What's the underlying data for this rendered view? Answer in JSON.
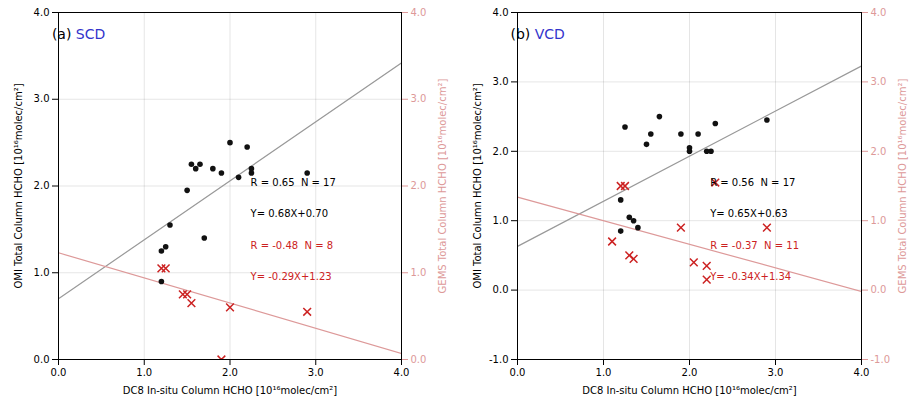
{
  "chart_data": [
    {
      "type": "scatter",
      "title": [
        {
          "text": "(a) ",
          "color": "#000000"
        },
        {
          "text": "SCD",
          "color": "#3333cc"
        }
      ],
      "xlabel": "DC8 In-situ Column HCHO [10¹⁶molec/cm²]",
      "ylabel": "OMI Total Column HCHO [10¹⁶molec/cm²]",
      "y2label": "GEMS Total Column HCHO [10¹⁶molec/cm²]",
      "xlim": [
        0.0,
        4.0
      ],
      "ylim": [
        0.0,
        4.0
      ],
      "y2lim": [
        0.0,
        4.0
      ],
      "xticks": [
        {
          "value": 0,
          "label": "0.0"
        },
        {
          "value": 1,
          "label": "1.0"
        },
        {
          "value": 2,
          "label": "2.0"
        },
        {
          "value": 3,
          "label": "3.0"
        },
        {
          "value": 4,
          "label": "4.0"
        }
      ],
      "yticks": [
        {
          "value": 0,
          "label": "0.0"
        },
        {
          "value": 1,
          "label": "1.0"
        },
        {
          "value": 2,
          "label": "2.0"
        },
        {
          "value": 3,
          "label": "3.0"
        },
        {
          "value": 4,
          "label": "4.0"
        }
      ],
      "y2ticks": [
        {
          "value": 0,
          "label": "0.0"
        },
        {
          "value": 1,
          "label": "1.0"
        },
        {
          "value": 2,
          "label": "2.0"
        },
        {
          "value": 3,
          "label": "3.0"
        },
        {
          "value": 4,
          "label": "4.0"
        }
      ],
      "grid": true,
      "series": [
        {
          "type": "line",
          "color": "#999999",
          "x": [
            0.0,
            4.0
          ],
          "values": [
            0.7,
            3.42
          ]
        },
        {
          "type": "line",
          "color": "#dd9999",
          "axis": "y2",
          "x": [
            0.0,
            4.0
          ],
          "values": [
            1.23,
            0.07
          ]
        },
        {
          "type": "scatter",
          "color": "#111111",
          "marker": "circle",
          "x": [
            1.2,
            1.2,
            1.25,
            1.3,
            1.5,
            1.55,
            1.6,
            1.65,
            1.7,
            1.8,
            1.9,
            2.0,
            2.1,
            2.2,
            2.25,
            2.25,
            2.9
          ],
          "values": [
            0.9,
            1.25,
            1.3,
            1.55,
            1.95,
            2.25,
            2.2,
            2.25,
            1.4,
            2.2,
            2.15,
            2.5,
            2.1,
            2.45,
            2.2,
            2.15,
            2.15
          ]
        },
        {
          "type": "scatter",
          "color": "#cc2222",
          "marker": "x",
          "axis": "y2",
          "x": [
            1.2,
            1.25,
            1.45,
            1.5,
            1.55,
            1.9,
            2.0,
            2.9
          ],
          "values": [
            1.05,
            1.05,
            0.75,
            0.75,
            0.65,
            0.0,
            0.6,
            0.55
          ]
        }
      ],
      "annotations": [
        {
          "text": "R = 0.65  N = 17",
          "color": "#000000"
        },
        {
          "text": "Y= 0.68X+0.70",
          "color": "#000000"
        },
        {
          "text": "R = -0.48  N = 8",
          "color": "#cc2222"
        },
        {
          "text": "Y= -0.29X+1.23",
          "color": "#cc2222"
        }
      ]
    },
    {
      "type": "scatter",
      "title": [
        {
          "text": "(b) ",
          "color": "#000000"
        },
        {
          "text": "VCD",
          "color": "#3333cc"
        }
      ],
      "xlabel": "DC8 In-situ Column HCHO [10¹⁶molec/cm²]",
      "ylabel": "OMI Total Column HCHO [10¹⁶molec/cm²]",
      "y2label": "GEMS Total Column HCHO [10¹⁶molec/cm²]",
      "xlim": [
        0.0,
        4.0
      ],
      "ylim": [
        -1.0,
        4.0
      ],
      "y2lim": [
        -1.0,
        4.0
      ],
      "xticks": [
        {
          "value": 0,
          "label": "0.0"
        },
        {
          "value": 1,
          "label": "1.0"
        },
        {
          "value": 2,
          "label": "2.0"
        },
        {
          "value": 3,
          "label": "3.0"
        },
        {
          "value": 4,
          "label": "4.0"
        }
      ],
      "yticks": [
        {
          "value": -1,
          "label": "-1.0"
        },
        {
          "value": 0,
          "label": "0.0"
        },
        {
          "value": 1,
          "label": "1.0"
        },
        {
          "value": 2,
          "label": "2.0"
        },
        {
          "value": 3,
          "label": "3.0"
        },
        {
          "value": 4,
          "label": "4.0"
        }
      ],
      "y2ticks": [
        {
          "value": -1,
          "label": "-1.0"
        },
        {
          "value": 0,
          "label": "0.0"
        },
        {
          "value": 1,
          "label": "1.0"
        },
        {
          "value": 2,
          "label": "2.0"
        },
        {
          "value": 3,
          "label": "3.0"
        },
        {
          "value": 4,
          "label": "4.0"
        }
      ],
      "grid": true,
      "series": [
        {
          "type": "line",
          "color": "#999999",
          "x": [
            0.0,
            4.0
          ],
          "values": [
            0.63,
            3.23
          ]
        },
        {
          "type": "line",
          "color": "#dd9999",
          "axis": "y2",
          "x": [
            0.0,
            4.0
          ],
          "values": [
            1.34,
            -0.02
          ]
        },
        {
          "type": "scatter",
          "color": "#111111",
          "marker": "circle",
          "x": [
            1.2,
            1.25,
            1.3,
            1.35,
            1.4,
            1.5,
            1.55,
            1.65,
            1.9,
            2.0,
            2.0,
            2.1,
            2.2,
            2.25,
            2.3,
            2.9,
            1.2
          ],
          "values": [
            1.3,
            2.35,
            1.05,
            1.0,
            0.9,
            2.1,
            2.25,
            2.5,
            2.25,
            2.0,
            2.05,
            2.25,
            2.0,
            2.0,
            2.4,
            2.45,
            0.85
          ]
        },
        {
          "type": "scatter",
          "color": "#cc2222",
          "marker": "x",
          "axis": "y2",
          "x": [
            1.1,
            1.2,
            1.3,
            1.35,
            1.9,
            2.05,
            2.2,
            2.2,
            2.3,
            2.9,
            1.25
          ],
          "values": [
            0.7,
            1.5,
            0.5,
            0.45,
            0.9,
            0.4,
            0.35,
            0.15,
            1.55,
            0.9,
            1.5
          ]
        }
      ],
      "annotations": [
        {
          "text": "R = 0.56  N = 17",
          "color": "#000000"
        },
        {
          "text": "Y= 0.65X+0.63",
          "color": "#000000"
        },
        {
          "text": "R = -0.37  N = 11",
          "color": "#cc2222"
        },
        {
          "text": "Y= -0.34X+1.34",
          "color": "#cc2222"
        }
      ]
    }
  ]
}
